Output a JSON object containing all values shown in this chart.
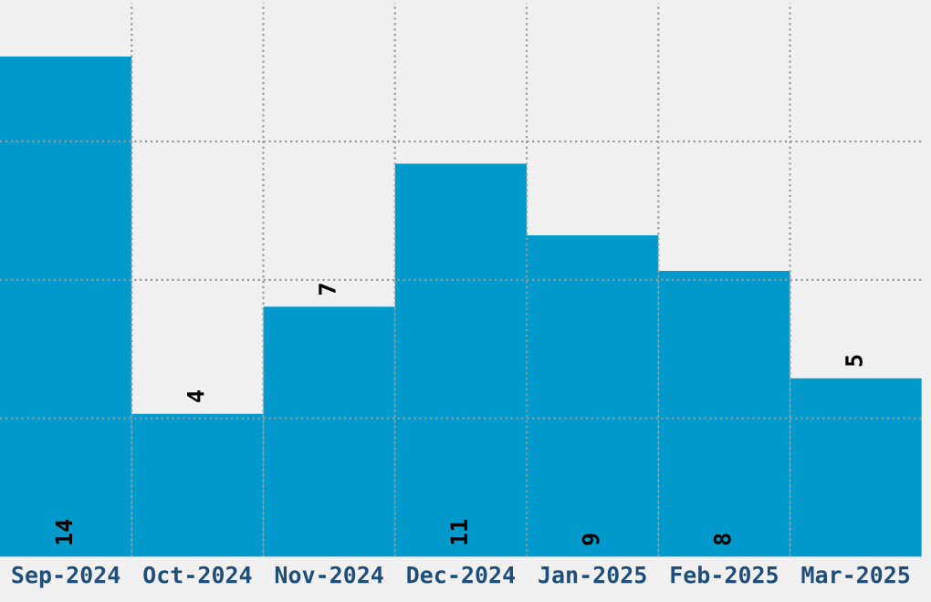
{
  "chart_data": {
    "type": "bar",
    "categories": [
      "Sep-2024",
      "Oct-2024",
      "Nov-2024",
      "Dec-2024",
      "Jan-2025",
      "Feb-2025",
      "Mar-2025"
    ],
    "values": [
      14,
      4,
      7,
      11,
      9,
      8,
      5
    ],
    "color": "#0099cc",
    "ylim": [
      0,
      15.5
    ],
    "yticks": [
      {
        "value": 3.875,
        "label": null
      },
      {
        "value": 7.75,
        "label": null
      },
      {
        "value": 11.625,
        "label": null
      }
    ],
    "tick_labels": "x",
    "grid": true,
    "data_labels": true
  }
}
